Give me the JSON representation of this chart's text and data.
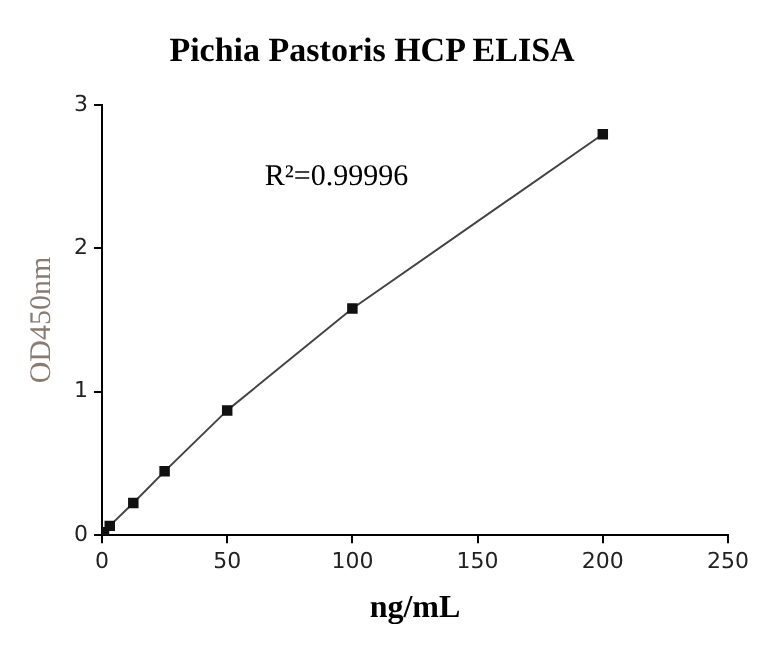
{
  "chart_data": {
    "type": "line",
    "title": "Pichia Pastoris HCP ELISA",
    "xlabel": "ng/mL",
    "ylabel": "OD450nm",
    "x": [
      0.8,
      3.1,
      12.5,
      25,
      50,
      100,
      200
    ],
    "series": [
      {
        "color": "#111111",
        "values": [
          0.02,
          0.065,
          0.225,
          0.445,
          0.87,
          1.58,
          2.795
        ]
      }
    ],
    "xlim": [
      0,
      250
    ],
    "xticks": [
      0,
      50,
      100,
      150,
      200,
      250
    ],
    "ylim": [
      0,
      3
    ],
    "yticks": [
      0,
      1,
      2,
      3
    ],
    "annotations": [
      "R²=0.99996"
    ],
    "grid": false,
    "legend": false,
    "marker": "square",
    "line_style": "solid"
  }
}
